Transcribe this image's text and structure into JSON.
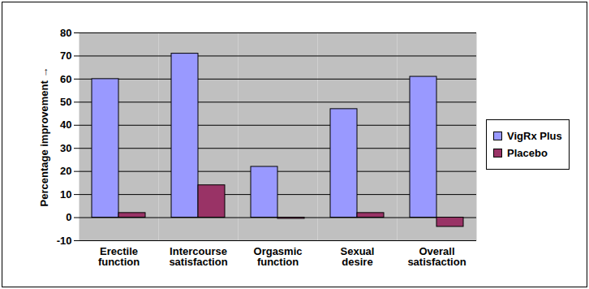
{
  "chart_data": {
    "type": "bar",
    "categories": [
      "Erectile function",
      "Intercourse satisfaction",
      "Orgasmic function",
      "Sexual desire",
      "Overall satisfaction"
    ],
    "series": [
      {
        "name": "VigRx Plus",
        "color": "#9999ff",
        "values": [
          60,
          71,
          22,
          47,
          61
        ]
      },
      {
        "name": "Placebo",
        "color": "#993366",
        "values": [
          2,
          14,
          -0.5,
          2,
          -4
        ]
      }
    ],
    "y_label": "Percentage improvement",
    "ylim": [
      -10,
      80
    ],
    "yticks": [
      -10,
      0,
      10,
      20,
      30,
      40,
      50,
      60,
      70,
      80
    ],
    "grid": true,
    "legend": "right"
  }
}
